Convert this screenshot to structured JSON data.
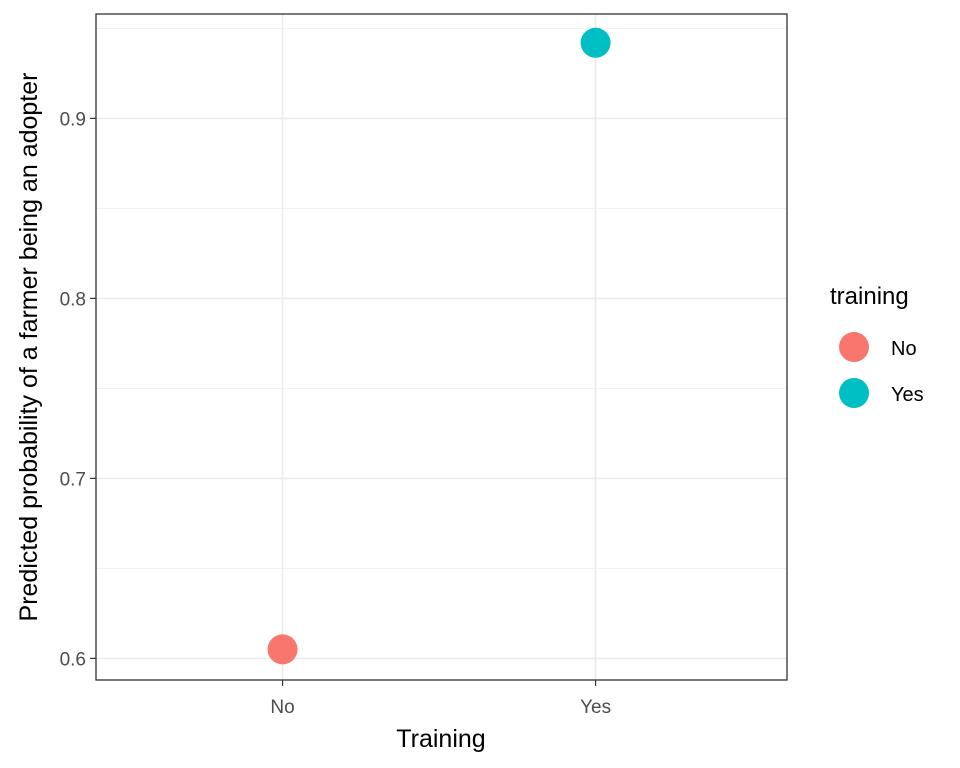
{
  "chart_data": {
    "type": "scatter",
    "title": "",
    "xlabel": "Training",
    "ylabel": "Predicted probability of a farmer being an adopter",
    "categories": [
      "No",
      "Yes"
    ],
    "values": [
      0.605,
      0.942
    ],
    "ylim": [
      0.588,
      0.958
    ],
    "yticks": [
      0.6,
      0.7,
      0.8,
      0.9
    ],
    "ytick_labels": [
      "0.6",
      "0.7",
      "0.8",
      "0.9"
    ],
    "grid": true,
    "legend": {
      "title": "training",
      "placement": "right",
      "entries": [
        {
          "label": "No",
          "color": "#F8766D"
        },
        {
          "label": "Yes",
          "color": "#00BFC4"
        }
      ]
    },
    "colors": {
      "No": "#F8766D",
      "Yes": "#00BFC4",
      "grid": "#ebebeb",
      "panel_border": "#333333"
    }
  }
}
